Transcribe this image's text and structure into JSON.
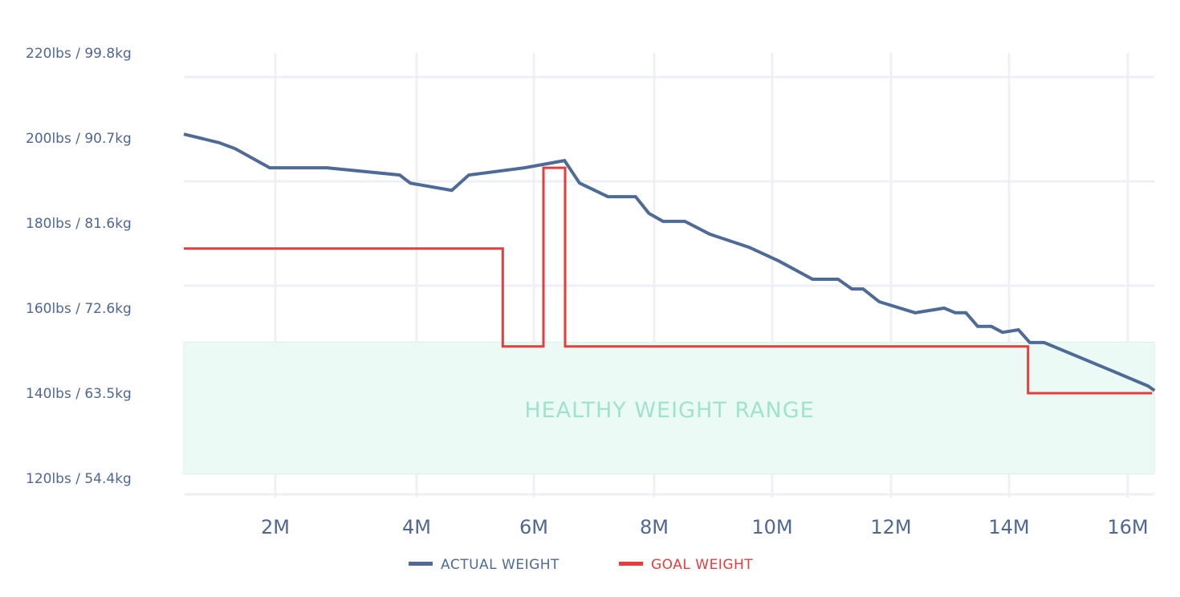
{
  "chart_data": {
    "type": "line",
    "title": "",
    "xlabel": "",
    "ylabel": "",
    "x_unit": "months",
    "x_ticks": [
      {
        "value": 2,
        "label": "2M"
      },
      {
        "value": 4,
        "label": "4M"
      },
      {
        "value": 6,
        "label": "6M"
      },
      {
        "value": 8,
        "label": "8M"
      },
      {
        "value": 10,
        "label": "10M"
      },
      {
        "value": 12,
        "label": "12M"
      },
      {
        "value": 14,
        "label": "14M"
      },
      {
        "value": 16,
        "label": "16M"
      }
    ],
    "y_ticks": [
      {
        "value": 220,
        "label": "220lbs / 99.8kg"
      },
      {
        "value": 200,
        "label": "200lbs / 90.7kg"
      },
      {
        "value": 180,
        "label": "180lbs / 81.6kg"
      },
      {
        "value": 160,
        "label": "160lbs / 72.6kg"
      },
      {
        "value": 140,
        "label": "140lbs / 63.5kg"
      },
      {
        "value": 120,
        "label": "120lbs / 54.4kg"
      }
    ],
    "xlim": [
      0.7,
      16.45
    ],
    "ylim": [
      120,
      220
    ],
    "grid": true,
    "legend_position": "bottom",
    "band": {
      "label": "HEALTHY WEIGHT RANGE",
      "from": 121,
      "to": 152,
      "color": "#ebfaf5",
      "text_color": "#9fe3cf"
    },
    "series": [
      {
        "name": "ACTUAL WEIGHT",
        "color": "#4e6a96",
        "points": [
          [
            0.7,
            200.9
          ],
          [
            1.2,
            198.9
          ],
          [
            1.43,
            197.5
          ],
          [
            1.92,
            193.0
          ],
          [
            2.73,
            193.0
          ],
          [
            3.76,
            191.3
          ],
          [
            3.91,
            189.4
          ],
          [
            4.6,
            187.7
          ],
          [
            4.89,
            191.3
          ],
          [
            5.84,
            193.0
          ],
          [
            6.51,
            194.7
          ],
          [
            6.76,
            189.4
          ],
          [
            7.23,
            186.2
          ],
          [
            7.69,
            186.2
          ],
          [
            7.91,
            182.3
          ],
          [
            8.15,
            180.4
          ],
          [
            8.52,
            180.4
          ],
          [
            8.94,
            177.4
          ],
          [
            9.61,
            174.3
          ],
          [
            10.11,
            171.1
          ],
          [
            10.68,
            166.8
          ],
          [
            11.11,
            166.8
          ],
          [
            11.34,
            164.5
          ],
          [
            11.53,
            164.5
          ],
          [
            11.8,
            161.5
          ],
          [
            12.41,
            158.9
          ],
          [
            12.9,
            160.0
          ],
          [
            13.09,
            158.9
          ],
          [
            13.27,
            158.9
          ],
          [
            13.47,
            155.7
          ],
          [
            13.7,
            155.7
          ],
          [
            13.89,
            154.3
          ],
          [
            14.16,
            154.9
          ],
          [
            14.35,
            151.9
          ],
          [
            14.59,
            151.9
          ],
          [
            15.66,
            145.7
          ],
          [
            16.34,
            141.7
          ],
          [
            16.45,
            140.6
          ]
        ]
      },
      {
        "name": "GOAL WEIGHT",
        "color": "#e63c3c",
        "step": true,
        "points": [
          [
            0.7,
            174
          ],
          [
            5.47,
            174
          ],
          [
            5.47,
            151
          ],
          [
            6.16,
            151
          ],
          [
            6.16,
            193
          ],
          [
            6.52,
            193
          ],
          [
            6.52,
            151
          ],
          [
            14.32,
            151
          ],
          [
            14.32,
            140
          ],
          [
            16.41,
            140
          ]
        ]
      }
    ]
  }
}
